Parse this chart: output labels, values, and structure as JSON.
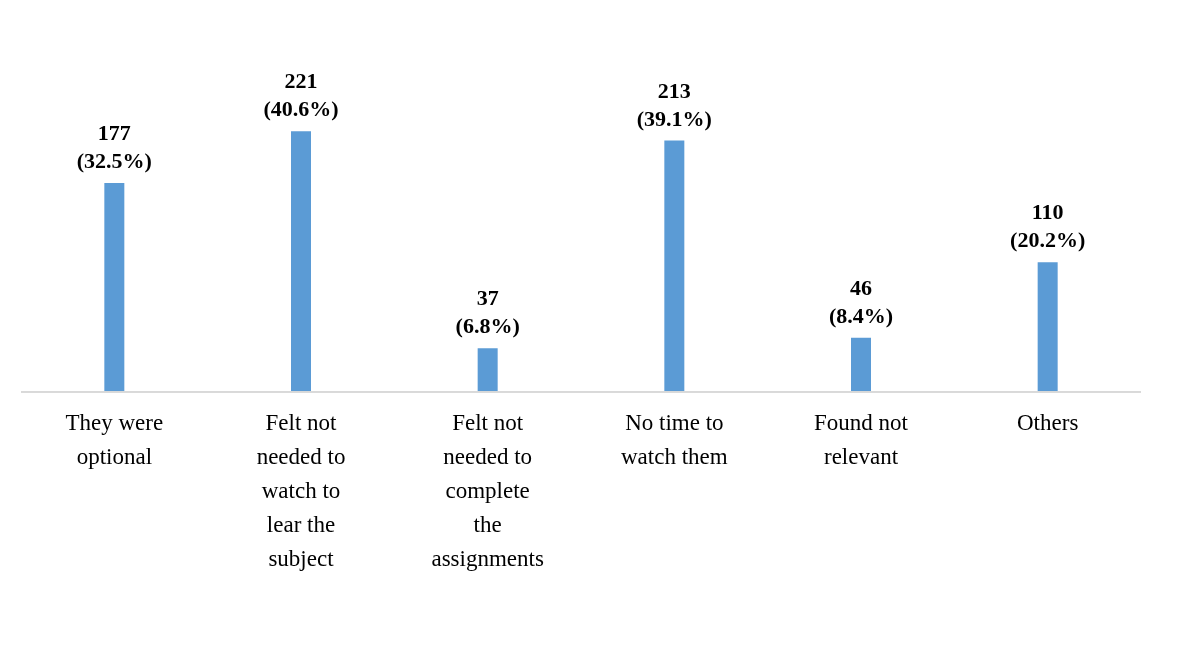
{
  "chart_data": {
    "type": "bar",
    "categories": [
      "They were optional",
      "Felt not needed to watch to lear the subject",
      "Felt not needed to complete the assignments",
      "No time to watch them",
      "Found not relevant",
      "Others"
    ],
    "values": [
      177,
      221,
      37,
      213,
      46,
      110
    ],
    "value_labels": [
      "177 (32.5%)",
      "221 (40.6%)",
      "37 (6.8%)",
      "213 (39.1%)",
      "46 (8.4%)",
      "110 (20.2%)"
    ],
    "color": "#5b9bd5"
  }
}
